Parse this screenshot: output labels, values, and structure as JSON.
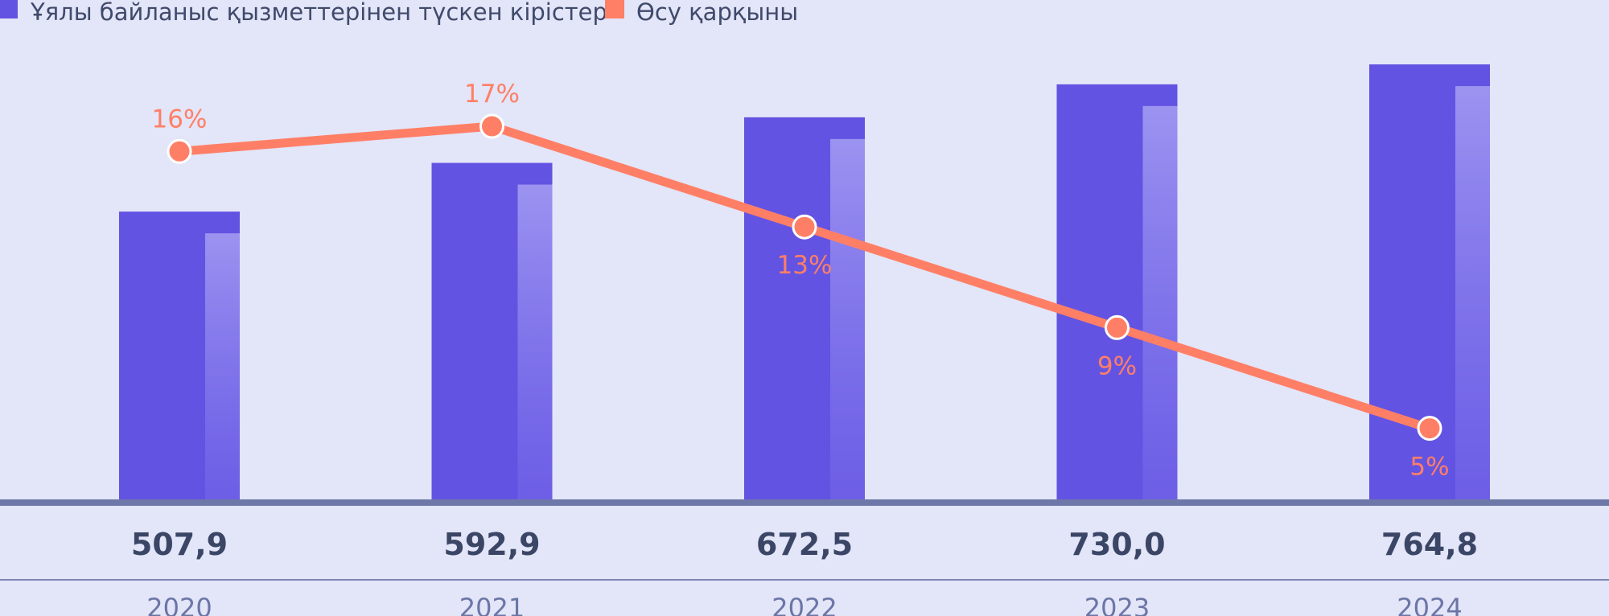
{
  "colors": {
    "background": "#e3e5f8",
    "bar": "#6353e2",
    "bar_highlight": "#9a8ff0",
    "line": "#ff7f66",
    "axis": "#6e78a8",
    "value_text": "#3b4666",
    "year_text": "#6b76a6"
  },
  "legend": [
    {
      "label": "Ұялы байланыс қызметтерінен түскен кірістер",
      "color": "#6353e2",
      "icon": "square-icon"
    },
    {
      "label": "Өсу қарқыны",
      "color": "#ff7f66",
      "icon": "square-icon"
    }
  ],
  "chart_data": {
    "type": "bar",
    "categories": [
      "2020",
      "2021",
      "2022",
      "2023",
      "2024"
    ],
    "series": [
      {
        "name": "Ұялы байланыс қызметтерінен түскен кірістер",
        "type": "bar",
        "values": [
          507.9,
          592.9,
          672.5,
          730.0,
          764.8
        ],
        "labels": [
          "507,9",
          "592,9",
          "672,5",
          "730,0",
          "764,8"
        ]
      },
      {
        "name": "Өсу қарқыны",
        "type": "line",
        "values": [
          16,
          17,
          13,
          9,
          5
        ],
        "labels": [
          "16%",
          "17%",
          "13%",
          "9%",
          "5%"
        ]
      }
    ],
    "title": "",
    "xlabel": "",
    "ylabel": "",
    "legend_position": "top-left",
    "grid": false
  }
}
